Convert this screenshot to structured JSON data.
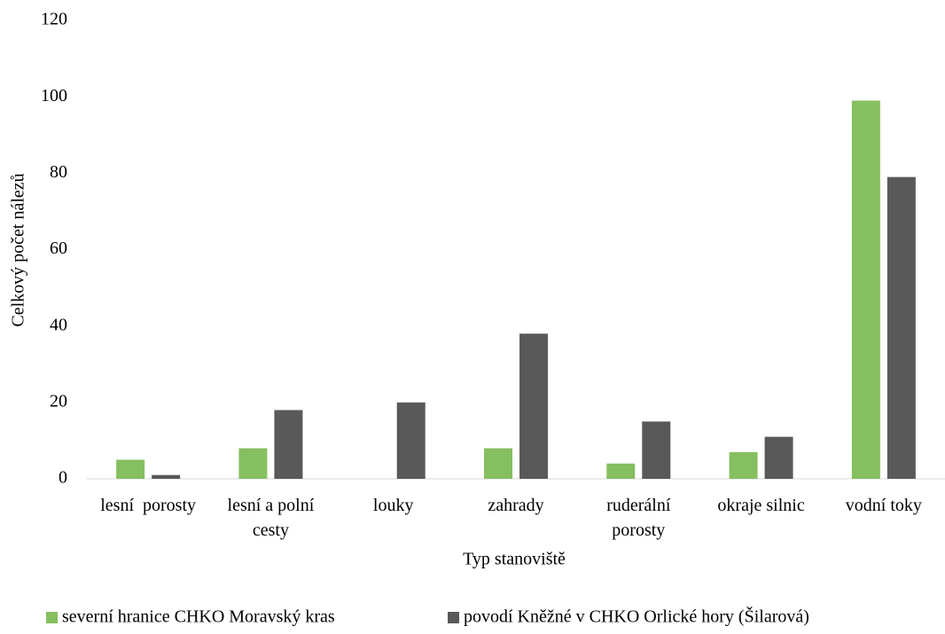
{
  "chart_data": {
    "type": "bar",
    "x_label": "Typ stanoviště",
    "y_label": "Celkový počet nálezů",
    "categories": [
      "lesní  porosty",
      "lesní a polní cesty",
      "louky",
      "zahrady",
      "ruderální porosty",
      "okraje silnic",
      "vodní toky"
    ],
    "series": [
      {
        "name": "severní hranice CHKO Moravský kras",
        "color": "#86bf60",
        "values": [
          5,
          8,
          0,
          8,
          4,
          7,
          99
        ]
      },
      {
        "name": "povodí Kněžné v CHKO Orlické hory (Šilarová)",
        "color": "#595959",
        "values": [
          1,
          18,
          20,
          38,
          15,
          11,
          79
        ]
      }
    ],
    "ylim": [
      0,
      120
    ],
    "yticks": [
      0,
      20,
      40,
      60,
      80,
      100,
      120
    ],
    "grid": false,
    "legend": "bottom"
  }
}
